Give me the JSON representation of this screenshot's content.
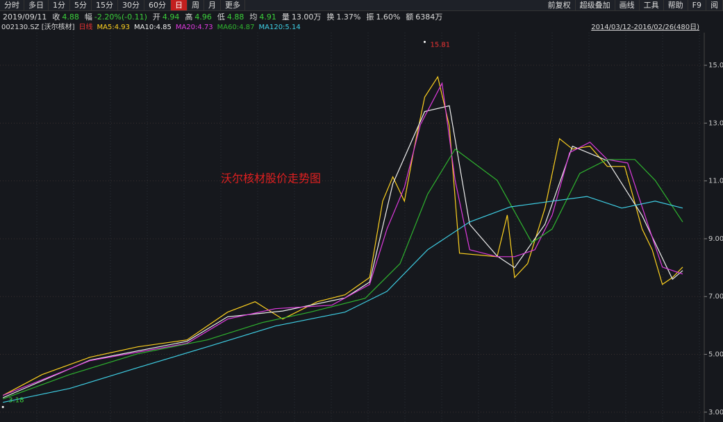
{
  "toolbar": {
    "left": [
      "分时",
      "多日",
      "1分",
      "5分",
      "15分",
      "30分",
      "60分",
      "日",
      "周",
      "月",
      "更多"
    ],
    "active": 7,
    "right": [
      "前复权",
      "超级叠加",
      "画线",
      "工具",
      "帮助",
      "F9",
      "阅"
    ]
  },
  "info": {
    "date": "2019/09/11",
    "items": [
      {
        "label": "收",
        "value": "4.88",
        "color": "#3bd13b"
      },
      {
        "label": "幅",
        "value": "-2.20%(-0.11)",
        "color": "#3bd13b"
      },
      {
        "label": "开",
        "value": "4.94",
        "color": "#3bd13b"
      },
      {
        "label": "高",
        "value": "4.96",
        "color": "#3bd13b"
      },
      {
        "label": "低",
        "value": "4.88",
        "color": "#3bd13b"
      },
      {
        "label": "均",
        "value": "4.91",
        "color": "#3bd13b"
      },
      {
        "label": "量",
        "value": "13.00万",
        "color": "#dddddd"
      },
      {
        "label": "换",
        "value": "1.37%",
        "color": "#dddddd"
      },
      {
        "label": "振",
        "value": "1.60%",
        "color": "#dddddd"
      },
      {
        "label": "额",
        "value": "6384万",
        "color": "#dddddd"
      }
    ]
  },
  "chart_data": {
    "type": "line",
    "code": "002130.SZ [沃尔核材]",
    "period": "日线",
    "range": "2014/03/12-2016/02/26(480日)",
    "title": "沃尔核材股价走势图",
    "xlim": [
      0,
      483
    ],
    "ylim": [
      2.66,
      16.13
    ],
    "yticks": [
      {
        "value": 3,
        "label": "3.00"
      },
      {
        "value": 5,
        "label": "5.00"
      },
      {
        "value": 7,
        "label": "7.00"
      },
      {
        "value": 9,
        "label": "9.00"
      },
      {
        "value": 11,
        "label": "11.00"
      },
      {
        "value": 13,
        "label": "13.00"
      },
      {
        "value": 15,
        "label": "15.00"
      }
    ],
    "grid": true,
    "high": {
      "x": 293,
      "value": 15.81,
      "label": "15.81"
    },
    "low": {
      "x": 2,
      "value": 3.18,
      "label": "3.18"
    },
    "series": [
      {
        "name": "MA5:4.93",
        "color": "#ffd21f",
        "x": [
          2,
          29,
          62,
          95,
          129,
          157,
          176,
          195,
          219,
          238,
          255,
          264,
          271,
          279,
          286,
          293,
          302,
          310,
          317,
          343,
          350,
          355,
          364,
          376,
          386,
          395,
          407,
          419,
          431,
          443,
          450,
          457,
          464,
          471
        ],
        "values": [
          3.58,
          4.3,
          4.9,
          5.26,
          5.5,
          6.46,
          6.82,
          6.22,
          6.82,
          7.06,
          7.66,
          10.3,
          11.14,
          10.3,
          12.2,
          13.9,
          14.6,
          12.9,
          8.5,
          8.38,
          9.82,
          7.66,
          8.14,
          10.06,
          12.46,
          12.1,
          12.2,
          11.5,
          11.5,
          9.34,
          8.62,
          7.42,
          7.66,
          8.02
        ]
      },
      {
        "name": "MA10:4.85",
        "color": "#f0f0f0",
        "x": [
          2,
          62,
          129,
          157,
          195,
          238,
          255,
          271,
          293,
          310,
          324,
          343,
          355,
          376,
          395,
          419,
          443,
          464,
          471
        ],
        "values": [
          3.5,
          4.8,
          5.45,
          6.3,
          6.5,
          6.95,
          7.5,
          10.9,
          13.4,
          13.6,
          9.5,
          8.4,
          8.0,
          9.5,
          12.2,
          11.7,
          9.8,
          7.6,
          7.9
        ]
      },
      {
        "name": "MA20:4.73",
        "color": "#e03be0",
        "x": [
          2,
          62,
          129,
          157,
          190,
          229,
          255,
          267,
          279,
          290,
          305,
          314,
          324,
          343,
          355,
          369,
          381,
          393,
          407,
          419,
          433,
          448,
          457,
          471
        ],
        "values": [
          3.58,
          4.78,
          5.38,
          6.22,
          6.58,
          6.7,
          7.42,
          9.34,
          10.78,
          12.94,
          14.38,
          11.02,
          8.62,
          8.38,
          8.38,
          8.62,
          9.82,
          11.98,
          12.34,
          11.74,
          11.62,
          9.34,
          8.02,
          7.78
        ]
      },
      {
        "name": "MA60:4.87",
        "color": "#2fb52f",
        "x": [
          2,
          48,
          95,
          143,
          181,
          214,
          252,
          276,
          295,
          314,
          343,
          367,
          381,
          400,
          419,
          438,
          452,
          471
        ],
        "values": [
          3.46,
          4.3,
          5.02,
          5.5,
          6.1,
          6.46,
          6.94,
          8.14,
          10.54,
          12.1,
          11.02,
          8.86,
          9.34,
          11.26,
          11.74,
          11.74,
          11.02,
          9.58
        ]
      },
      {
        "name": "MA120:5.14",
        "color": "#3fd0e6",
        "x": [
          2,
          48,
          95,
          143,
          190,
          238,
          267,
          295,
          324,
          352,
          381,
          405,
          429,
          452,
          471
        ],
        "values": [
          3.34,
          3.82,
          4.54,
          5.26,
          5.98,
          6.46,
          7.18,
          8.62,
          9.58,
          10.1,
          10.3,
          10.46,
          10.06,
          10.3,
          10.06
        ]
      }
    ]
  }
}
